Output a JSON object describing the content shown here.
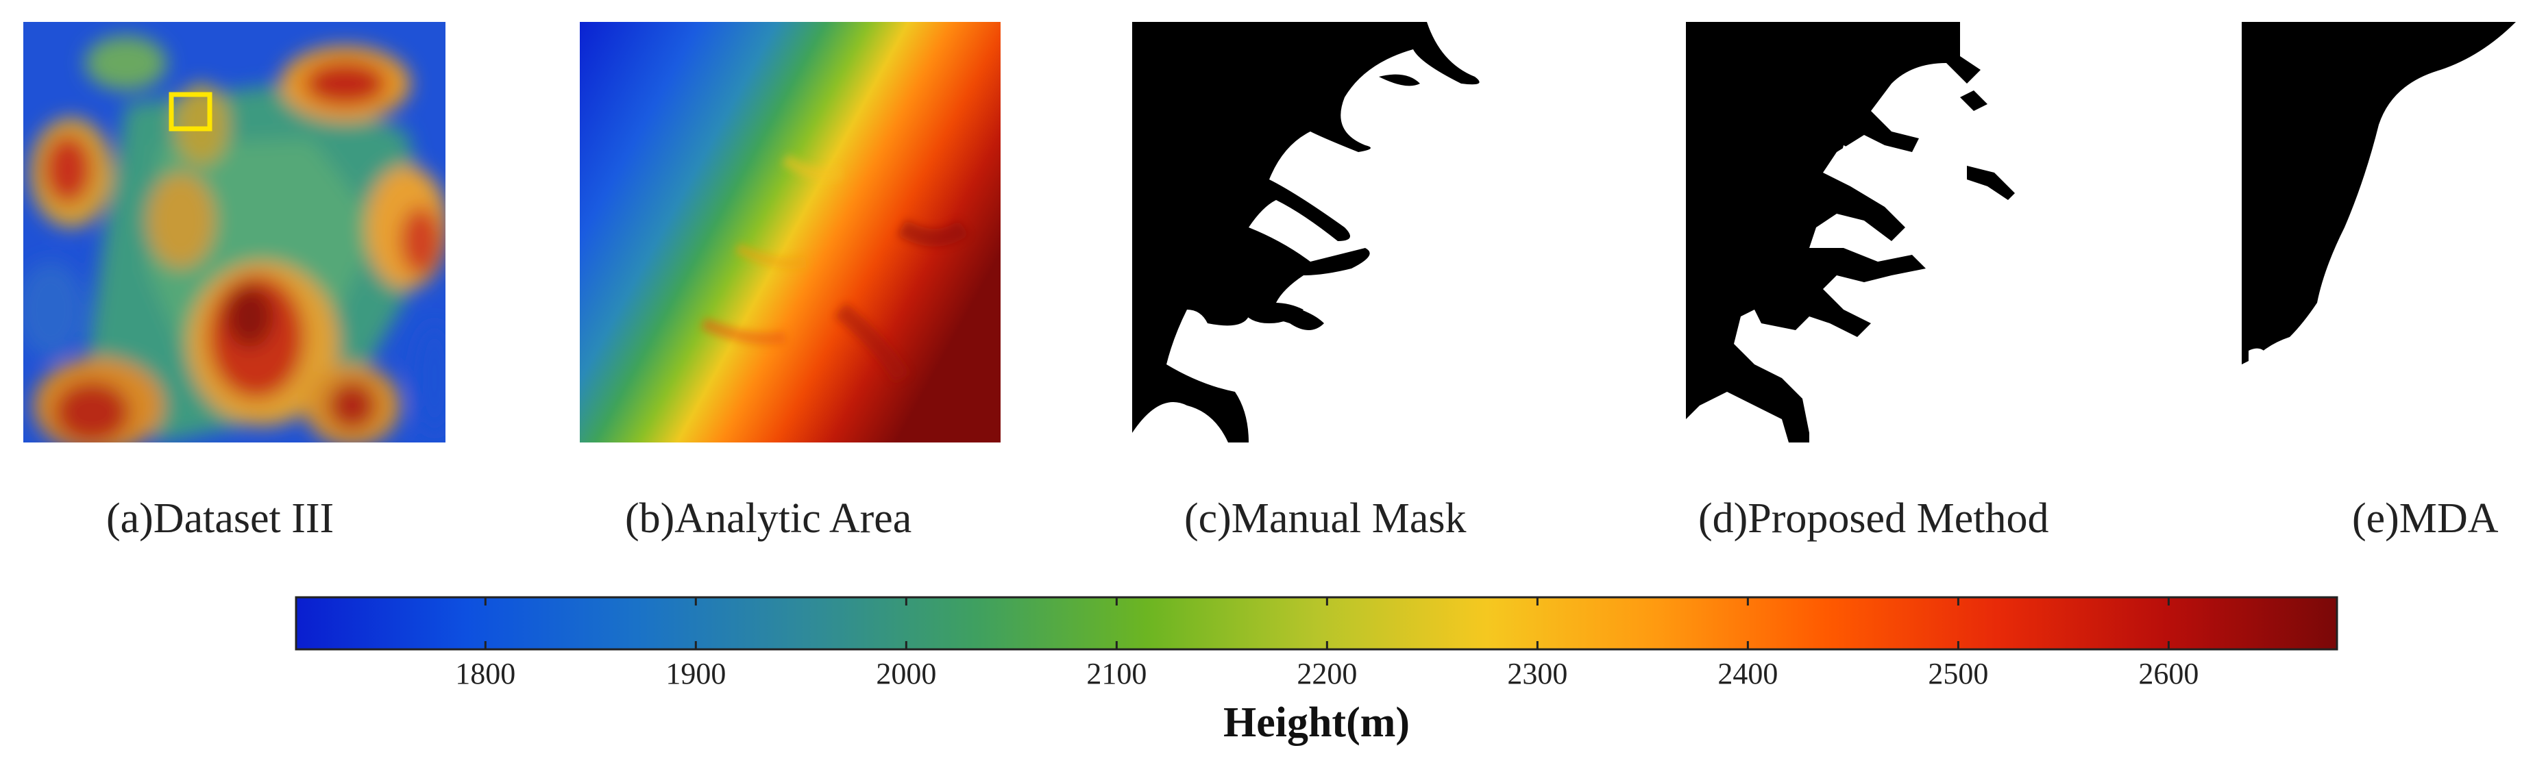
{
  "panels": [
    {
      "id": "a",
      "caption": "(a)Dataset III"
    },
    {
      "id": "b",
      "caption": "(b)Analytic Area"
    },
    {
      "id": "c",
      "caption": "(c)Manual Mask"
    },
    {
      "id": "d",
      "caption": "(d)Proposed Method"
    },
    {
      "id": "e",
      "caption": "(e)MDA"
    }
  ],
  "colorbar": {
    "title": "Height(m)",
    "range": [
      1710,
      2680
    ],
    "ticks": [
      1800,
      1900,
      2000,
      2100,
      2200,
      2300,
      2400,
      2500,
      2600
    ],
    "tick_labels": [
      "1800",
      "1900",
      "2000",
      "2100",
      "2200",
      "2300",
      "2400",
      "2500",
      "2600"
    ],
    "colormap": [
      "#0a1ecf",
      "#0d50e0",
      "#1a72c8",
      "#2f8a9a",
      "#3fa060",
      "#6cb522",
      "#b7c52a",
      "#f5c820",
      "#ff9a10",
      "#ff5a00",
      "#e82a08",
      "#b80e0a",
      "#7a0808"
    ]
  },
  "colors": {
    "highlight_box": "#ffe600",
    "mask_fg": "#000000",
    "mask_bg": "#ffffff"
  }
}
